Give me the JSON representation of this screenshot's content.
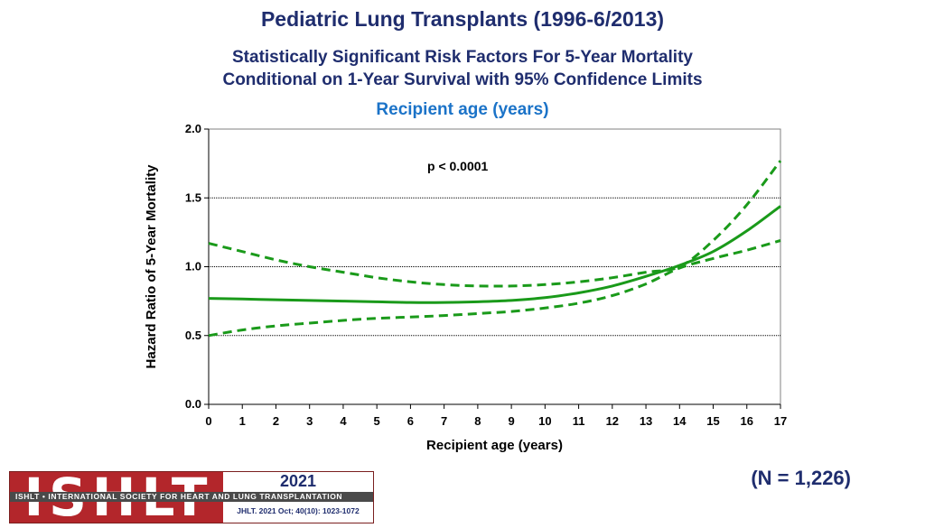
{
  "header": {
    "title": "Pediatric Lung Transplants (1996-6/2013)",
    "subtitle_line1": "Statistically Significant Risk Factors For 5-Year Mortality",
    "subtitle_line2": "Conditional on 1-Year Survival with 95% Confidence Limits",
    "chart_heading": "Recipient age (years)"
  },
  "sample_size": "(N = 1,226)",
  "logo": {
    "letters": "ISHLT",
    "band_text": "ISHLT • INTERNATIONAL SOCIETY FOR HEART AND LUNG TRANSPLANTATION",
    "year": "2021",
    "citation": "JHLT. 2021 Oct; 40(10): 1023-1072"
  },
  "colors": {
    "title": "#1f2d6e",
    "heading": "#1b73c8",
    "series": "#1a9a1a",
    "logo_red": "#b3262b"
  },
  "chart_data": {
    "type": "line",
    "title": "Recipient age (years)",
    "xlabel": "Recipient age (years)",
    "ylabel": "Hazard Ratio of 5-Year Mortality",
    "xlim": [
      0,
      17
    ],
    "ylim": [
      0,
      2
    ],
    "x_ticks": [
      "0",
      "1",
      "2",
      "3",
      "4",
      "5",
      "6",
      "7",
      "8",
      "9",
      "10",
      "11",
      "12",
      "13",
      "14",
      "15",
      "16",
      "17"
    ],
    "y_ticks": [
      "0.0",
      "0.5",
      "1.0",
      "1.5",
      "2.0"
    ],
    "gridlines_y": [
      0.5,
      1.0,
      1.5
    ],
    "annotation": "p < 0.0001",
    "x": [
      0,
      1,
      2,
      3,
      4,
      5,
      6,
      7,
      8,
      9,
      10,
      11,
      12,
      13,
      14,
      15,
      16,
      17
    ],
    "series": [
      {
        "name": "Hazard ratio",
        "style": "solid",
        "values": [
          0.77,
          0.765,
          0.76,
          0.755,
          0.75,
          0.745,
          0.74,
          0.74,
          0.745,
          0.755,
          0.775,
          0.81,
          0.86,
          0.93,
          1.01,
          1.11,
          1.26,
          1.44
        ]
      },
      {
        "name": "Upper 95% confidence limit",
        "style": "dashed",
        "values": [
          1.17,
          1.11,
          1.05,
          1.0,
          0.96,
          0.92,
          0.89,
          0.87,
          0.86,
          0.86,
          0.87,
          0.89,
          0.92,
          0.96,
          1.0,
          1.19,
          1.45,
          1.77
        ]
      },
      {
        "name": "Lower 95% confidence limit",
        "style": "dashed",
        "values": [
          0.5,
          0.54,
          0.57,
          0.59,
          0.61,
          0.625,
          0.635,
          0.645,
          0.66,
          0.675,
          0.7,
          0.735,
          0.79,
          0.875,
          0.99,
          1.06,
          1.12,
          1.19
        ]
      }
    ]
  }
}
